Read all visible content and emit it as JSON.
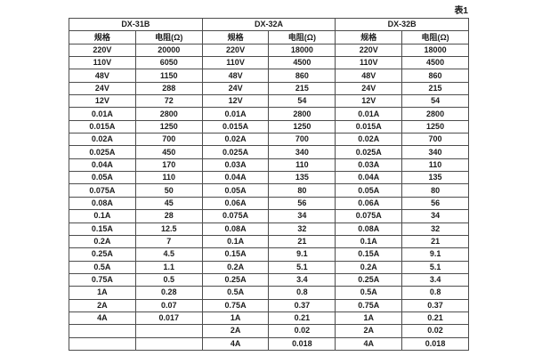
{
  "page": {
    "caption": "表1"
  },
  "colors": {
    "background": "#ffffff",
    "border": "#4d4d4d",
    "text": "#1c1c1c"
  },
  "table": {
    "col_headers": [
      "规格",
      "电阻(Ω)"
    ],
    "groups": [
      {
        "name": "DX-31B",
        "rows": [
          [
            "220V",
            "20000"
          ],
          [
            "110V",
            "6050"
          ],
          [
            "48V",
            "1150"
          ],
          [
            "24V",
            "288"
          ],
          [
            "12V",
            "72"
          ],
          [
            "0.01A",
            "2800"
          ],
          [
            "0.015A",
            "1250"
          ],
          [
            "0.02A",
            "700"
          ],
          [
            "0.025A",
            "450"
          ],
          [
            "0.04A",
            "170"
          ],
          [
            "0.05A",
            "110"
          ],
          [
            "0.075A",
            "50"
          ],
          [
            "0.08A",
            "45"
          ],
          [
            "0.1A",
            "28"
          ],
          [
            "0.15A",
            "12.5"
          ],
          [
            "0.2A",
            "7"
          ],
          [
            "0.25A",
            "4.5"
          ],
          [
            "0.5A",
            "1.1"
          ],
          [
            "0.75A",
            "0.5"
          ],
          [
            "1A",
            "0.28"
          ],
          [
            "2A",
            "0.07"
          ],
          [
            "4A",
            "0.017"
          ],
          [
            "",
            ""
          ],
          [
            "",
            ""
          ]
        ]
      },
      {
        "name": "DX-32A",
        "rows": [
          [
            "220V",
            "18000"
          ],
          [
            "110V",
            "4500"
          ],
          [
            "48V",
            "860"
          ],
          [
            "24V",
            "215"
          ],
          [
            "12V",
            "54"
          ],
          [
            "0.01A",
            "2800"
          ],
          [
            "0.015A",
            "1250"
          ],
          [
            "0.02A",
            "700"
          ],
          [
            "0.025A",
            "340"
          ],
          [
            "0.03A",
            "110"
          ],
          [
            "0.04A",
            "135"
          ],
          [
            "0.05A",
            "80"
          ],
          [
            "0.06A",
            "56"
          ],
          [
            "0.075A",
            "34"
          ],
          [
            "0.08A",
            "32"
          ],
          [
            "0.1A",
            "21"
          ],
          [
            "0.15A",
            "9.1"
          ],
          [
            "0.2A",
            "5.1"
          ],
          [
            "0.25A",
            "3.4"
          ],
          [
            "0.5A",
            "0.8"
          ],
          [
            "0.75A",
            "0.37"
          ],
          [
            "1A",
            "0.21"
          ],
          [
            "2A",
            "0.02"
          ],
          [
            "4A",
            "0.018"
          ]
        ]
      },
      {
        "name": "DX-32B",
        "rows": [
          [
            "220V",
            "18000"
          ],
          [
            "110V",
            "4500"
          ],
          [
            "48V",
            "860"
          ],
          [
            "24V",
            "215"
          ],
          [
            "12V",
            "54"
          ],
          [
            "0.01A",
            "2800"
          ],
          [
            "0.015A",
            "1250"
          ],
          [
            "0.02A",
            "700"
          ],
          [
            "0.025A",
            "340"
          ],
          [
            "0.03A",
            "110"
          ],
          [
            "0.04A",
            "135"
          ],
          [
            "0.05A",
            "80"
          ],
          [
            "0.06A",
            "56"
          ],
          [
            "0.075A",
            "34"
          ],
          [
            "0.08A",
            "32"
          ],
          [
            "0.1A",
            "21"
          ],
          [
            "0.15A",
            "9.1"
          ],
          [
            "0.2A",
            "5.1"
          ],
          [
            "0.25A",
            "3.4"
          ],
          [
            "0.5A",
            "0.8"
          ],
          [
            "0.75A",
            "0.37"
          ],
          [
            "1A",
            "0.21"
          ],
          [
            "2A",
            "0.02"
          ],
          [
            "4A",
            "0.018"
          ]
        ]
      }
    ]
  }
}
